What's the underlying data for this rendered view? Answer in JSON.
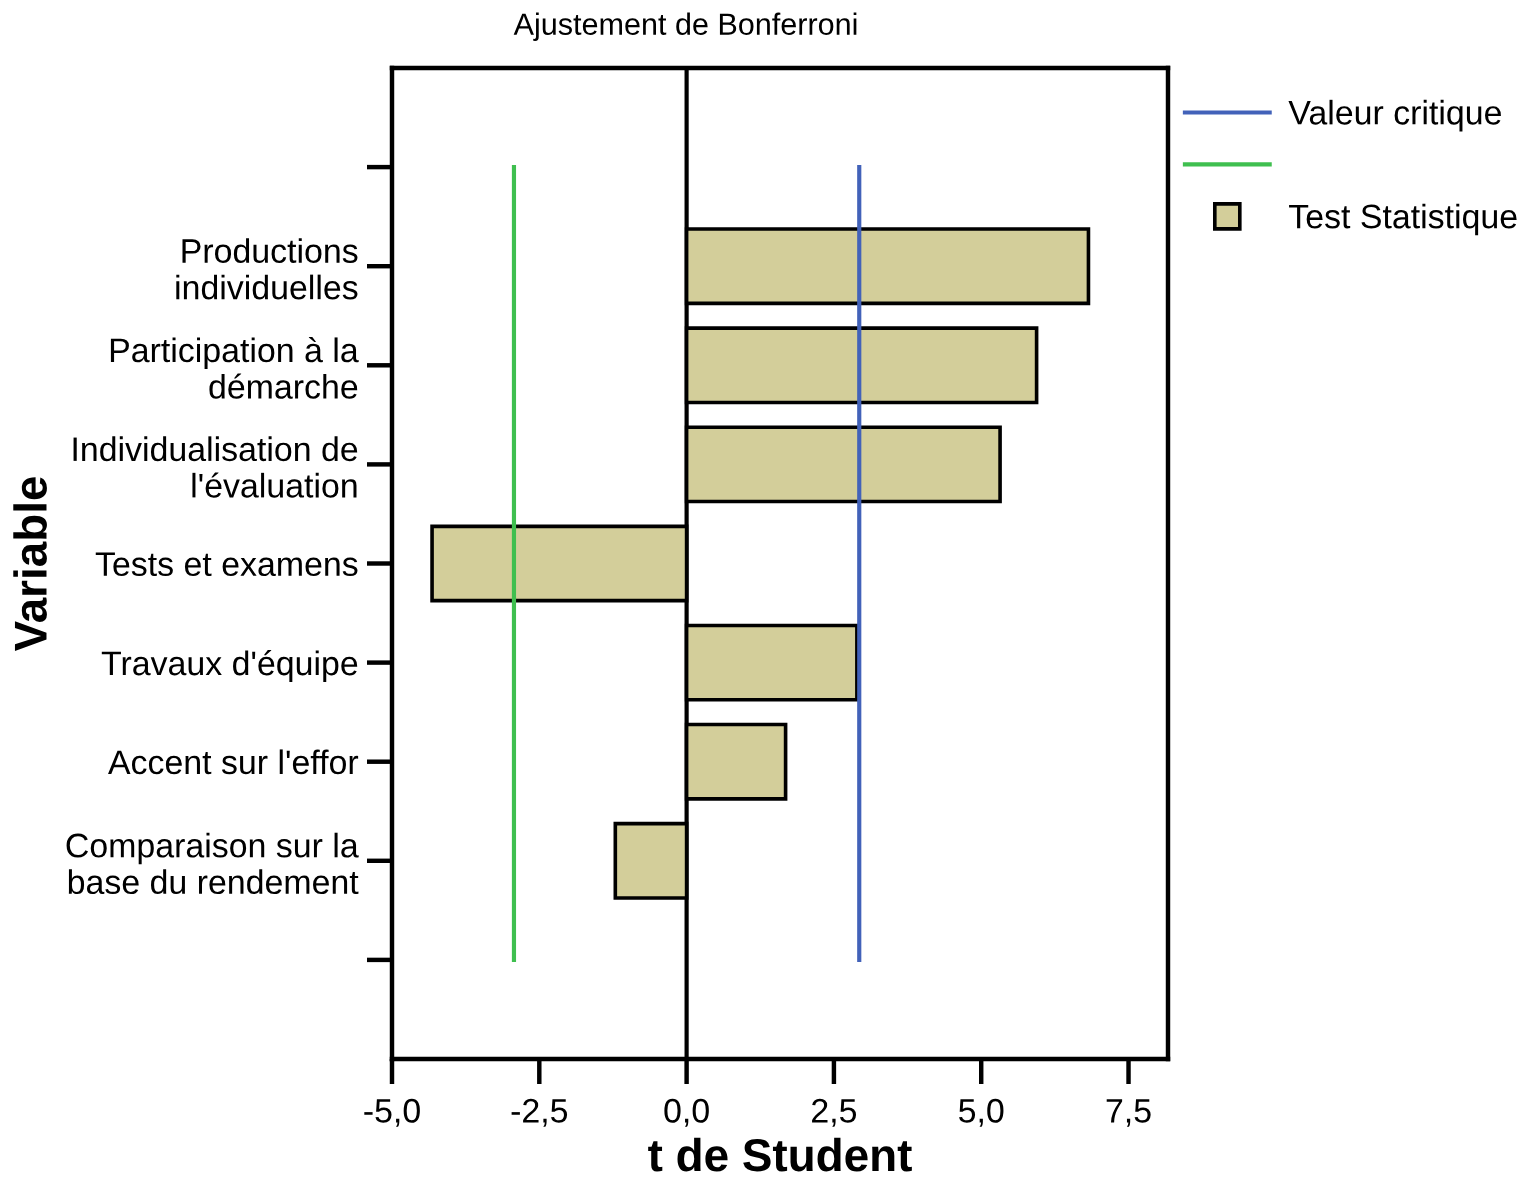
{
  "chart_data": {
    "type": "bar",
    "orientation": "horizontal",
    "title": "Ajustement de Bonferroni",
    "xlabel": "t de Student",
    "ylabel": "Variable",
    "categories": [
      null,
      "Productions\nindividuelles",
      "Participation à la\ndémarche",
      "Individualisation de\nl'évaluation",
      "Tests et examens",
      "Travaux d'équipe",
      "Accent sur l'effor",
      "Comparaison sur la\nbase du rendement",
      null
    ],
    "series": [
      {
        "name": "Valeur critique",
        "type": "line",
        "color": "#4262b9",
        "values": [
          2.93,
          2.93,
          2.93,
          2.93,
          2.93,
          2.93,
          2.93,
          2.93,
          2.93
        ]
      },
      {
        "type": "line",
        "color": "#3fbf4f",
        "values": [
          -2.93,
          -2.93,
          -2.93,
          -2.93,
          -2.93,
          -2.93,
          -2.93,
          -2.93,
          -2.93
        ]
      },
      {
        "name": "Test Statistique",
        "color": "#d3ce9a",
        "values": [
          null,
          6.82,
          5.94,
          5.32,
          -4.32,
          2.89,
          1.68,
          -1.21,
          null
        ]
      }
    ],
    "xlim": [
      -5.0,
      8.17
    ],
    "xticks": [
      {
        "value": -5.0,
        "label": "-5,0"
      },
      {
        "value": -2.5,
        "label": "-2,5"
      },
      {
        "value": 0.0,
        "label": "0,0"
      },
      {
        "value": 2.5,
        "label": "2,5"
      },
      {
        "value": 5.0,
        "label": "5,0"
      },
      {
        "value": 7.5,
        "label": "7,5"
      }
    ],
    "ref_lines": [
      {
        "axis": "x",
        "value": 0.0,
        "color": "#000000"
      }
    ],
    "legend": "right",
    "line_style": "solid"
  }
}
